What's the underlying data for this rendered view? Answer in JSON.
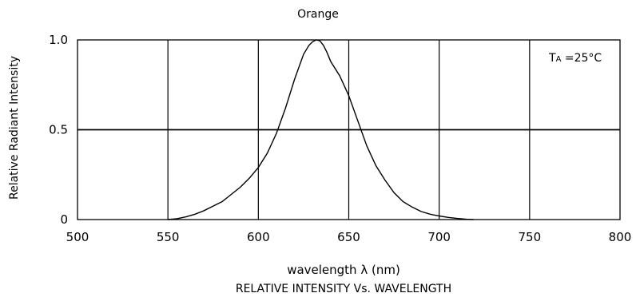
{
  "chart_data": {
    "type": "line",
    "title": "Orange",
    "subtitle": "RELATIVE INTENSITY Vs. WAVELENGTH",
    "xlabel": "wavelength λ (nm)",
    "ylabel": "Relative Radiant Intensity",
    "annotation": "Tₐ =25°C",
    "annotation_main": "T",
    "annotation_sub": "A",
    "annotation_rest": " =25°C",
    "xlim": [
      500,
      800
    ],
    "ylim": [
      0,
      1.0
    ],
    "x_ticks": [
      500,
      550,
      600,
      650,
      700,
      750,
      800
    ],
    "x_tick_labels": [
      "500",
      "550",
      "600",
      "650",
      "700",
      "750",
      "800"
    ],
    "y_ticks": [
      0,
      0.5,
      1.0
    ],
    "y_tick_labels": [
      "0",
      "0.5",
      "1.0"
    ],
    "grid": true,
    "series": [
      {
        "x": [
          550,
          555,
          560,
          565,
          570,
          575,
          580,
          585,
          590,
          595,
          600,
          605,
          610,
          615,
          620,
          625,
          628,
          630,
          632,
          634,
          636,
          638,
          640,
          645,
          650,
          655,
          660,
          665,
          670,
          675,
          680,
          685,
          690,
          695,
          700,
          705,
          710,
          715,
          719
        ],
        "y": [
          0.0,
          0.005,
          0.015,
          0.03,
          0.05,
          0.075,
          0.1,
          0.14,
          0.18,
          0.23,
          0.29,
          0.37,
          0.48,
          0.62,
          0.78,
          0.92,
          0.97,
          0.99,
          1.0,
          0.995,
          0.97,
          0.93,
          0.88,
          0.8,
          0.69,
          0.55,
          0.41,
          0.3,
          0.22,
          0.15,
          0.1,
          0.07,
          0.045,
          0.03,
          0.02,
          0.012,
          0.006,
          0.002,
          0.0
        ]
      }
    ]
  }
}
